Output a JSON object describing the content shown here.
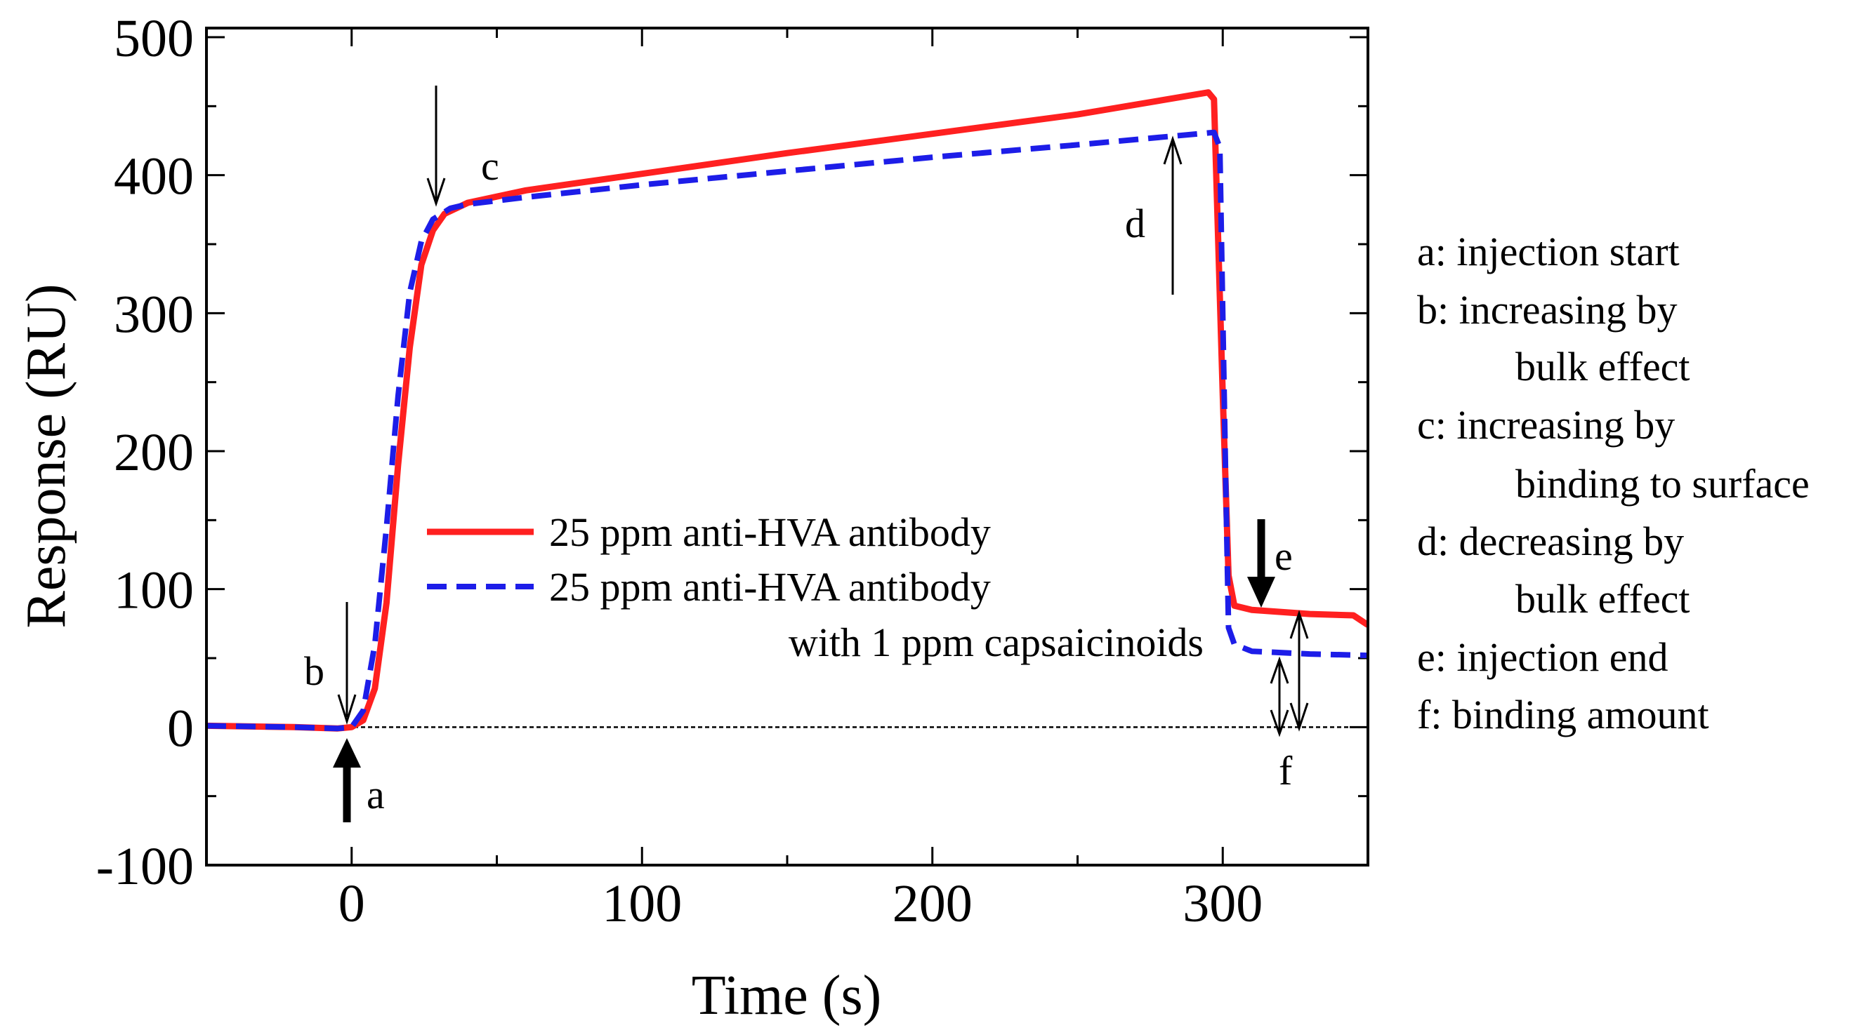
{
  "chart_data": {
    "type": "line",
    "xlabel": "Time (s)",
    "ylabel": "Response (RU)",
    "xlim": [
      -50,
      350
    ],
    "ylim": [
      -100,
      500
    ],
    "xticks": [
      0,
      100,
      200,
      300
    ],
    "xtick_labels": [
      "0",
      "100",
      "200",
      "300"
    ],
    "yticks": [
      -100,
      0,
      100,
      200,
      300,
      400,
      500
    ],
    "ytick_labels": [
      "-100",
      "0",
      "100",
      "200",
      "300",
      "400",
      "500"
    ],
    "legend_position": "center",
    "series": [
      {
        "name": "25 ppm anti-HVA antibody",
        "style": "solid",
        "color": "#ff2020",
        "points": [
          [
            -50,
            1
          ],
          [
            -20,
            0
          ],
          [
            -5,
            -1
          ],
          [
            0,
            0
          ],
          [
            4,
            5
          ],
          [
            8,
            28
          ],
          [
            12,
            90
          ],
          [
            16,
            190
          ],
          [
            20,
            275
          ],
          [
            24,
            335
          ],
          [
            28,
            360
          ],
          [
            32,
            372
          ],
          [
            40,
            380
          ],
          [
            60,
            389
          ],
          [
            100,
            401
          ],
          [
            150,
            416
          ],
          [
            200,
            430
          ],
          [
            250,
            444
          ],
          [
            295,
            460
          ],
          [
            297,
            455
          ],
          [
            300,
            240
          ],
          [
            302,
            110
          ],
          [
            304,
            88
          ],
          [
            310,
            85
          ],
          [
            330,
            82
          ],
          [
            345,
            81
          ],
          [
            350,
            74
          ]
        ]
      },
      {
        "name": "25 ppm anti-HVA antibody with 1 ppm capsaicinoids",
        "label_line1": "25 ppm anti-HVA antibody",
        "label_line2": "with 1 ppm capsaicinoids",
        "style": "dashed",
        "color": "#1d1de8",
        "points": [
          [
            -50,
            1
          ],
          [
            -20,
            0
          ],
          [
            -5,
            -1
          ],
          [
            0,
            0
          ],
          [
            4,
            12
          ],
          [
            8,
            60
          ],
          [
            12,
            145
          ],
          [
            16,
            240
          ],
          [
            20,
            315
          ],
          [
            24,
            352
          ],
          [
            28,
            368
          ],
          [
            34,
            376
          ],
          [
            40,
            379
          ],
          [
            60,
            384
          ],
          [
            100,
            393
          ],
          [
            150,
            403
          ],
          [
            200,
            413
          ],
          [
            250,
            422
          ],
          [
            297,
            431
          ],
          [
            299,
            420
          ],
          [
            301,
            180
          ],
          [
            302,
            72
          ],
          [
            304,
            60
          ],
          [
            310,
            55
          ],
          [
            330,
            53
          ],
          [
            350,
            52
          ]
        ]
      }
    ],
    "reference_line": {
      "y": 0,
      "style": "dotted"
    },
    "annotations": [
      {
        "label": "a",
        "arrow": "thick-up",
        "x": 0
      },
      {
        "label": "b",
        "arrow": "thin-down",
        "x": 0
      },
      {
        "label": "c",
        "arrow": "thin-down",
        "x": 31
      },
      {
        "label": "d",
        "arrow": "thin-up",
        "x": 284
      },
      {
        "label": "e",
        "arrow": "thick-down",
        "x": 316
      },
      {
        "label": "f",
        "arrow": "double",
        "x": 321
      }
    ]
  },
  "notes": [
    "a: injection start",
    "b: increasing by",
    "bulk effect",
    "c: increasing by",
    "binding to surface",
    "d: decreasing by",
    "bulk effect",
    "e: injection end",
    "f: binding amount"
  ]
}
